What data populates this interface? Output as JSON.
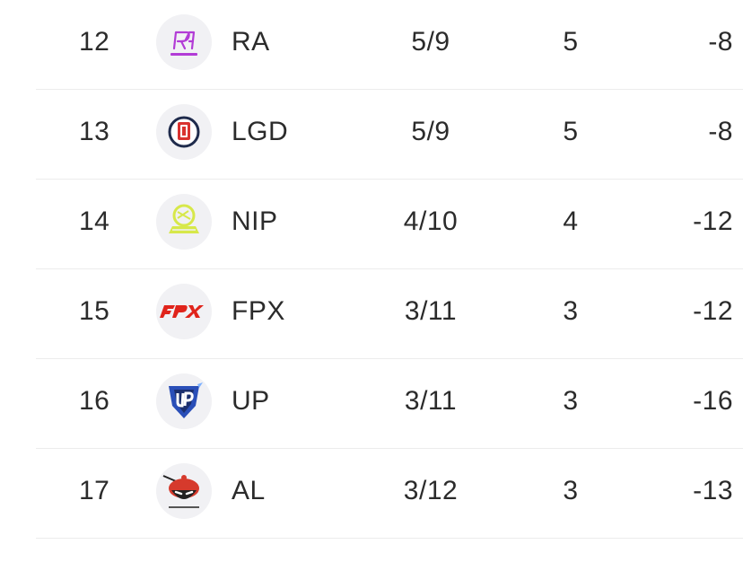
{
  "standings": {
    "rows": [
      {
        "rank": "12",
        "team": "RA",
        "record": "5/9",
        "points": "5",
        "diff": "-8",
        "logo_icon": "ra-team-logo-icon"
      },
      {
        "rank": "13",
        "team": "LGD",
        "record": "5/9",
        "points": "5",
        "diff": "-8",
        "logo_icon": "lgd-team-logo-icon"
      },
      {
        "rank": "14",
        "team": "NIP",
        "record": "4/10",
        "points": "4",
        "diff": "-12",
        "logo_icon": "nip-team-logo-icon"
      },
      {
        "rank": "15",
        "team": "FPX",
        "record": "3/11",
        "points": "3",
        "diff": "-12",
        "logo_icon": "fpx-team-logo-icon"
      },
      {
        "rank": "16",
        "team": "UP",
        "record": "3/11",
        "points": "3",
        "diff": "-16",
        "logo_icon": "up-team-logo-icon"
      },
      {
        "rank": "17",
        "team": "AL",
        "record": "3/12",
        "points": "3",
        "diff": "-13",
        "logo_icon": "al-team-logo-icon"
      }
    ]
  },
  "colors": {
    "text": "#2b2b2b",
    "separator": "#ececec",
    "logo_bg": "#f1f1f4",
    "ra": "#b23cd6",
    "lgd_red": "#d9322f",
    "lgd_navy": "#1f2b4c",
    "nip": "#d7e84a",
    "fpx": "#e0241b",
    "up": "#2a4fb8",
    "al_red": "#d63a2c"
  }
}
